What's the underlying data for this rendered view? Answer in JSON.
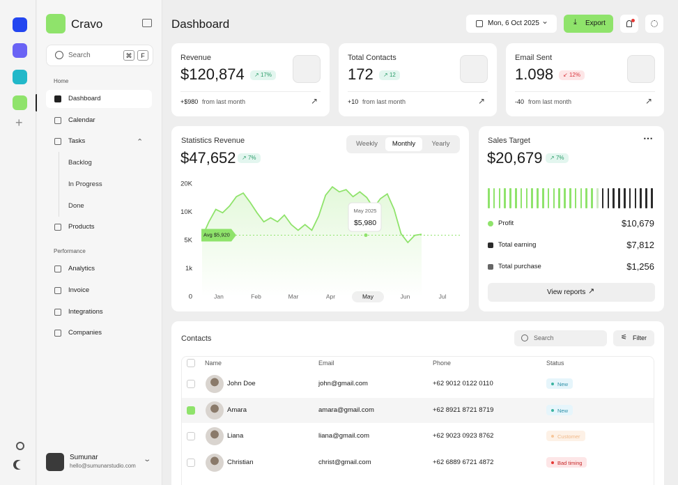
{
  "sidebar": {
    "brand": "Cravo",
    "search": "Search",
    "shortcut": [
      "⌘",
      "F"
    ],
    "sections": [
      {
        "title": "Home",
        "items": [
          {
            "label": "Dashboard"
          },
          {
            "label": "Calendar"
          },
          {
            "label": "Tasks",
            "children": [
              "Backlog",
              "In Progress",
              "Done"
            ]
          },
          {
            "label": "Products"
          }
        ]
      },
      {
        "title": "Performance",
        "items": [
          {
            "label": "Analytics"
          },
          {
            "label": "Invoice"
          },
          {
            "label": "Integrations"
          },
          {
            "label": "Companies"
          }
        ]
      }
    ],
    "user": {
      "name": "Sumunar",
      "email": "hello@sumunarstudio.com"
    }
  },
  "header": {
    "title": "Dashboard",
    "date": "Mon, 6 Oct 2025",
    "export": "Export"
  },
  "stats": [
    {
      "label": "Revenue",
      "value": "$120,874",
      "change": "17%",
      "trend": "up",
      "delta": "+$980",
      "note": "from last month"
    },
    {
      "label": "Total Contacts",
      "value": "172",
      "change": "12",
      "trend": "up",
      "delta": "+10",
      "note": "from last month"
    },
    {
      "label": "Email Sent",
      "value": "1.098",
      "change": "12%",
      "trend": "down",
      "delta": "-40",
      "note": "from last month"
    }
  ],
  "statistics": {
    "title": "Statistics Revenue",
    "value": "$47,652",
    "change": "7%",
    "tabs": [
      "Weekly",
      "Monthly",
      "Yearly"
    ],
    "active_tab": 1,
    "chart": {
      "type": "line",
      "color": "#8fe36b",
      "categories": [
        "Jan",
        "Feb",
        "Mar",
        "Apr",
        "May",
        "Jun",
        "Jul"
      ],
      "highlight": 4,
      "ylim": [
        0,
        20000
      ],
      "yticks": [
        0,
        {
          "value": 1000,
          "label": "1k"
        },
        {
          "value": 5000,
          "label": "5K"
        },
        {
          "value": 10000,
          "label": "10K"
        },
        {
          "value": 20000,
          "label": "20K"
        }
      ],
      "values": [
        5600,
        8300,
        11000,
        9900,
        12200,
        15500,
        16800,
        13500,
        9900,
        8300,
        9000,
        8300,
        9500,
        7800,
        6800,
        7800,
        6800,
        9300,
        16000,
        19000,
        17200,
        18000,
        15500,
        17200,
        15200,
        11500,
        14800,
        16500,
        11000,
        6200,
        4700,
        5900,
        6100
      ],
      "average": {
        "value": 5920,
        "label": "Avg $5,920"
      },
      "tooltip": {
        "label": "May 2025",
        "value": "$5,980"
      }
    }
  },
  "sales": {
    "title": "Sales Target",
    "value": "$20,679",
    "change": "7%",
    "rows": [
      {
        "label": "Profit",
        "value": "$10,679"
      },
      {
        "label": "Total earning",
        "value": "$7,812"
      },
      {
        "label": "Total purchase",
        "value": "$1,256"
      }
    ],
    "button": "View reports"
  },
  "contacts": {
    "title": "Contacts",
    "search": "Search",
    "filter": "Filter",
    "columns": [
      "Name",
      "Email",
      "Phone",
      "Status"
    ],
    "rows": [
      [
        "John Doe",
        "john@gmail.com",
        "+62 9012 0122 0110",
        "New"
      ],
      [
        "Amara",
        "amara@gmail.com",
        "+62 8921 8721 8719",
        "New"
      ],
      [
        "Liana",
        "liana@gmail.com",
        "+62 9023 0923 8762",
        "Customer"
      ],
      [
        "Christian",
        "christ@gmail.com",
        "+62 6889 6721 4872",
        "Bad timing"
      ]
    ],
    "checked": [
      1
    ]
  }
}
